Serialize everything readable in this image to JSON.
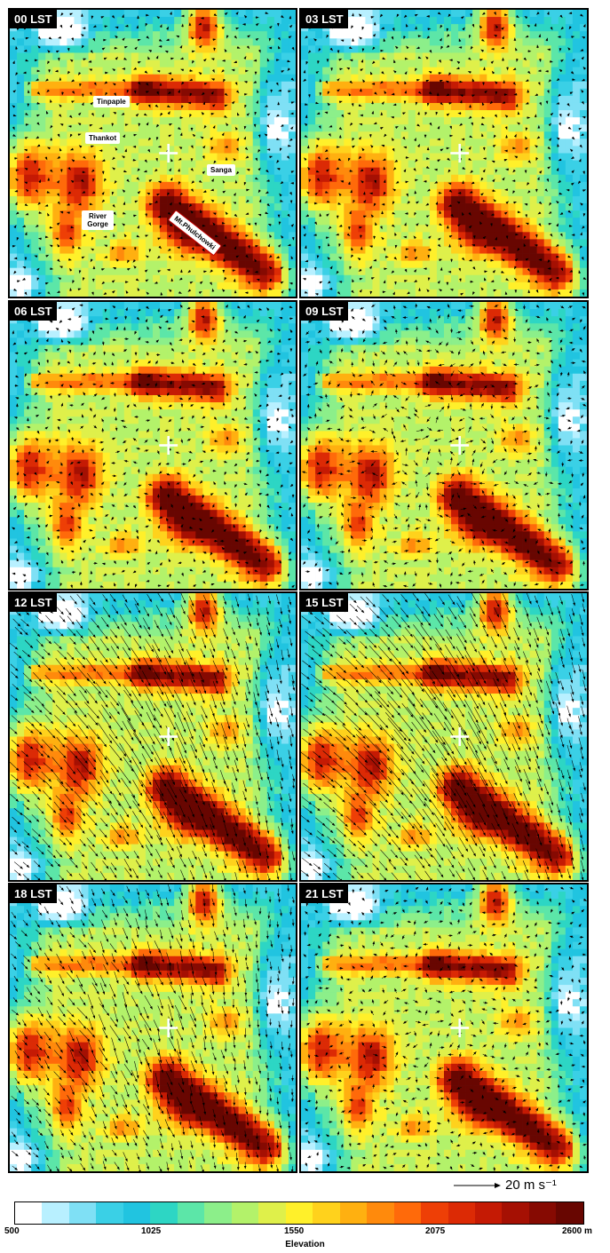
{
  "panels": [
    {
      "label": "00 LST",
      "wind_strength": 0.0
    },
    {
      "label": "03 LST",
      "wind_strength": 0.0
    },
    {
      "label": "06 LST",
      "wind_strength": 0.05
    },
    {
      "label": "09 LST",
      "wind_strength": 0.15
    },
    {
      "label": "12 LST",
      "wind_strength": 0.85
    },
    {
      "label": "15 LST",
      "wind_strength": 1.0
    },
    {
      "label": "18 LST",
      "wind_strength": 0.55
    },
    {
      "label": "21 LST",
      "wind_strength": 0.1
    }
  ],
  "place_names": {
    "tinpaple": "Tinpaple",
    "thankot": "Thankot",
    "sanga": "Sanga",
    "river_gorge": "River Gorge",
    "phulchowki": "Mt.Phulchowki"
  },
  "scale_reference": {
    "label": "20 m s⁻¹",
    "value": 20,
    "unit": "m s-1"
  },
  "colorbar": {
    "title": "Elevation",
    "min": 500,
    "max": 2600,
    "ticks": [
      "500",
      "1025",
      "1550",
      "2075",
      "2600 m"
    ],
    "colors": [
      "#ffffff",
      "#b8f0ff",
      "#7fe0f5",
      "#3ad0e6",
      "#21c4e0",
      "#2dd6c4",
      "#5ce6a8",
      "#8cef8a",
      "#b3f26a",
      "#dff04a",
      "#fff02a",
      "#ffd21c",
      "#ffb010",
      "#ff8a0c",
      "#ff6a0a",
      "#ee3f06",
      "#dc2a05",
      "#c51a04",
      "#a51003",
      "#860a02",
      "#680601"
    ]
  }
}
